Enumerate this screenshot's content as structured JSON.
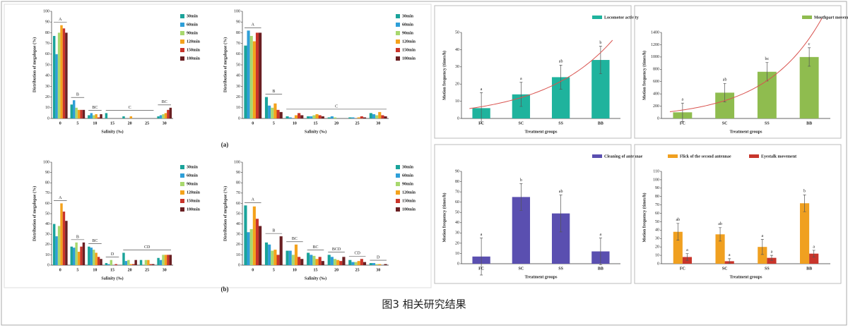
{
  "chart_data": [
    {
      "type": "grouped-bar",
      "ylabel": "Distribution of megalopae (%)",
      "xlabel": "Salinity (‰)",
      "categories": [
        "0",
        "5",
        "10",
        "15",
        "20",
        "25",
        "30"
      ],
      "series": [
        {
          "name": "30min",
          "color": "#1aa39a",
          "values": [
            77,
            13,
            3,
            5,
            2,
            0,
            2
          ]
        },
        {
          "name": "60min",
          "color": "#2e9fd8",
          "values": [
            60,
            17,
            5,
            0,
            0,
            0,
            3
          ]
        },
        {
          "name": "90min",
          "color": "#a8d86e",
          "values": [
            80,
            10,
            3,
            0,
            0,
            0,
            4
          ]
        },
        {
          "name": "120min",
          "color": "#f4a21c",
          "values": [
            87,
            8,
            4,
            0,
            2,
            0,
            5
          ]
        },
        {
          "name": "150min",
          "color": "#c9342a",
          "values": [
            84,
            8,
            1,
            0,
            0,
            0,
            8
          ]
        },
        {
          "name": "180min",
          "color": "#6a1f22",
          "values": [
            80,
            8,
            4,
            0,
            0,
            0,
            10
          ]
        }
      ],
      "ylim": [
        0,
        100
      ],
      "yticks": [
        0,
        10,
        20,
        30,
        40,
        50,
        60,
        70,
        80,
        90,
        100
      ],
      "legend": "right",
      "annotations": [
        {
          "text": "A",
          "from": "0",
          "to": "0"
        },
        {
          "text": "B",
          "from": "5",
          "to": "5"
        },
        {
          "text": "BC",
          "from": "10",
          "to": "10"
        },
        {
          "text": "C",
          "from": "15",
          "to": "25"
        },
        {
          "text": "BC",
          "from": "30",
          "to": "30"
        }
      ]
    },
    {
      "type": "grouped-bar",
      "ylabel": "Distribution of megalopae (%)",
      "xlabel": "Salinity (‰)",
      "categories": [
        "0",
        "5",
        "10",
        "15",
        "20",
        "25",
        "30"
      ],
      "series": [
        {
          "name": "30min",
          "color": "#1aa39a",
          "values": [
            68,
            20,
            2,
            2,
            1,
            1,
            5
          ]
        },
        {
          "name": "60min",
          "color": "#2e9fd8",
          "values": [
            82,
            12,
            1,
            2,
            2,
            1,
            4
          ]
        },
        {
          "name": "90min",
          "color": "#a8d86e",
          "values": [
            77,
            10,
            0,
            3,
            1,
            0,
            3
          ]
        },
        {
          "name": "120min",
          "color": "#f4a21c",
          "values": [
            72,
            14,
            3,
            4,
            0,
            1,
            6
          ]
        },
        {
          "name": "150min",
          "color": "#c9342a",
          "values": [
            80,
            8,
            5,
            3,
            0,
            2,
            3
          ]
        },
        {
          "name": "180min",
          "color": "#6a1f22",
          "values": [
            80,
            6,
            3,
            2,
            0,
            1,
            2
          ]
        }
      ],
      "ylim": [
        0,
        100
      ],
      "yticks": [
        0,
        10,
        20,
        30,
        40,
        50,
        60,
        70,
        80,
        90,
        100
      ],
      "legend": "right",
      "annotations": [
        {
          "text": "A",
          "from": "0",
          "to": "0"
        },
        {
          "text": "B",
          "from": "5",
          "to": "5"
        },
        {
          "text": "C",
          "from": "10",
          "to": "30"
        }
      ]
    },
    {
      "type": "error-bar",
      "ylabel": "Motion frequency (times/h)",
      "xlabel": "Treatment groups",
      "categories": [
        "FC",
        "SC",
        "SS",
        "BB"
      ],
      "series": [
        {
          "name": "Locomotor activity",
          "color": "#1fb39d",
          "values": [
            6,
            14,
            24,
            34
          ],
          "errors": [
            9,
            7,
            7,
            8
          ],
          "letters": [
            "a",
            "a",
            "ab",
            "b"
          ]
        }
      ],
      "ylim": [
        0,
        50
      ],
      "yticks": [
        0,
        10,
        20,
        30,
        40,
        50
      ],
      "legend": "top-right",
      "trendline": "#d9534f"
    },
    {
      "type": "error-bar",
      "ylabel": "Motion frequency (times/h)",
      "xlabel": "Treatment groups",
      "categories": [
        "FC",
        "SC",
        "SS",
        "BB"
      ],
      "series": [
        {
          "name": "Mouthpart movement",
          "color": "#8fbc4f",
          "values": [
            100,
            420,
            760,
            1000
          ],
          "errors": [
            150,
            150,
            150,
            150
          ],
          "letters": [
            "a",
            "ab",
            "bc",
            "c"
          ]
        }
      ],
      "ylim": [
        0,
        1400
      ],
      "yticks": [
        0,
        200,
        400,
        600,
        800,
        1000,
        1200,
        1400
      ],
      "legend": "top-right",
      "trendline": "#d9534f"
    },
    {
      "type": "grouped-bar",
      "ylabel": "Distribution of megalopae (%)",
      "xlabel": "Salinity (‰)",
      "categories": [
        "0",
        "5",
        "10",
        "15",
        "20",
        "25",
        "30"
      ],
      "series": [
        {
          "name": "30min",
          "color": "#1aa39a",
          "values": [
            40,
            18,
            18,
            2,
            12,
            5,
            7
          ]
        },
        {
          "name": "60min",
          "color": "#2e9fd8",
          "values": [
            28,
            17,
            17,
            1,
            4,
            0,
            5
          ]
        },
        {
          "name": "90min",
          "color": "#a8d86e",
          "values": [
            38,
            22,
            15,
            5,
            5,
            5,
            10
          ]
        },
        {
          "name": "120min",
          "color": "#f4a21c",
          "values": [
            60,
            13,
            12,
            0,
            1,
            5,
            10
          ]
        },
        {
          "name": "150min",
          "color": "#c9342a",
          "values": [
            52,
            18,
            8,
            1,
            1,
            1,
            10
          ]
        },
        {
          "name": "180min",
          "color": "#6a1f22",
          "values": [
            43,
            22,
            6,
            0,
            5,
            1,
            10
          ]
        }
      ],
      "ylim": [
        0,
        100
      ],
      "yticks": [
        0,
        10,
        20,
        30,
        40,
        50,
        60,
        70,
        80,
        90,
        100
      ],
      "legend": "right",
      "annotations": [
        {
          "text": "A",
          "from": "0",
          "to": "0"
        },
        {
          "text": "B",
          "from": "5",
          "to": "5"
        },
        {
          "text": "BC",
          "from": "10",
          "to": "10"
        },
        {
          "text": "D",
          "from": "15",
          "to": "15"
        },
        {
          "text": "CD",
          "from": "20",
          "to": "30"
        }
      ]
    },
    {
      "type": "grouped-bar",
      "ylabel": "Distribution of megalopae (%)",
      "xlabel": "Salinity (‰)",
      "categories": [
        "0",
        "5",
        "10",
        "15",
        "20",
        "25",
        "30"
      ],
      "series": [
        {
          "name": "30min",
          "color": "#1aa39a",
          "values": [
            58,
            22,
            14,
            12,
            10,
            5,
            2
          ]
        },
        {
          "name": "60min",
          "color": "#2e9fd8",
          "values": [
            32,
            20,
            14,
            10,
            8,
            3,
            2
          ]
        },
        {
          "name": "90min",
          "color": "#a8d86e",
          "values": [
            35,
            14,
            10,
            9,
            6,
            3,
            1
          ]
        },
        {
          "name": "120min",
          "color": "#f4a21c",
          "values": [
            57,
            15,
            20,
            6,
            5,
            4,
            1
          ]
        },
        {
          "name": "150min",
          "color": "#c9342a",
          "values": [
            45,
            10,
            8,
            8,
            4,
            6,
            0
          ]
        },
        {
          "name": "180min",
          "color": "#6a1f22",
          "values": [
            38,
            28,
            6,
            4,
            8,
            3,
            1
          ]
        }
      ],
      "ylim": [
        0,
        100
      ],
      "yticks": [
        0,
        10,
        20,
        30,
        40,
        50,
        60,
        70,
        80,
        90,
        100
      ],
      "legend": "right",
      "annotations": [
        {
          "text": "A",
          "from": "0",
          "to": "0"
        },
        {
          "text": "B",
          "from": "5",
          "to": "5"
        },
        {
          "text": "BC",
          "from": "10",
          "to": "10"
        },
        {
          "text": "BC",
          "from": "15",
          "to": "15"
        },
        {
          "text": "BCD",
          "from": "20",
          "to": "20"
        },
        {
          "text": "CD",
          "from": "25",
          "to": "25"
        },
        {
          "text": "D",
          "from": "30",
          "to": "30"
        }
      ]
    },
    {
      "type": "error-bar",
      "ylabel": "Motion frequency (times/h)",
      "xlabel": "Treatment groups",
      "categories": [
        "FC",
        "SC",
        "SS",
        "BB"
      ],
      "series": [
        {
          "name": "Cleaning of antennae",
          "color": "#5a4fb0",
          "values": [
            7,
            65,
            49,
            12
          ],
          "errors": [
            18,
            13,
            18,
            13
          ],
          "letters": [
            "a",
            "b",
            "ab",
            "a"
          ]
        }
      ],
      "ylim": [
        0,
        90
      ],
      "yticks": [
        0,
        10,
        20,
        30,
        40,
        50,
        60,
        70,
        80,
        90
      ],
      "legend": "top-right"
    },
    {
      "type": "error-bar",
      "ylabel": "Motion frequency (times/h)",
      "xlabel": "Treatment groups",
      "categories": [
        "FC",
        "SC",
        "SS",
        "BB"
      ],
      "series": [
        {
          "name": "Flick of the second antennae",
          "color": "#f0a020",
          "values": [
            38,
            35,
            20,
            72
          ],
          "errors": [
            10,
            8,
            9,
            10
          ],
          "letters": [
            "ab",
            "ab",
            "a",
            "b"
          ]
        },
        {
          "name": "Eyestalk movement",
          "color": "#c8352b",
          "values": [
            8,
            3,
            7,
            12
          ],
          "errors": [
            4,
            3,
            3,
            4
          ],
          "letters": [
            "a",
            "a",
            "a",
            "a"
          ]
        }
      ],
      "ylim": [
        0,
        110
      ],
      "yticks": [
        0,
        10,
        20,
        30,
        40,
        50,
        60,
        70,
        80,
        90,
        100,
        110
      ],
      "legend": "top-right"
    }
  ],
  "label_a": "(a)",
  "label_b": "(b)",
  "caption": "图3 相关研究结果"
}
